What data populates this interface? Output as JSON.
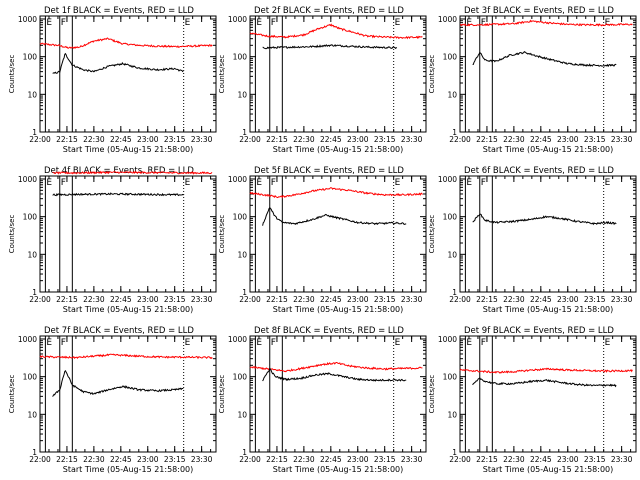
{
  "colors": {
    "events": "#000000",
    "lld": "#ff0000",
    "axes": "#000000",
    "background": "#ffffff"
  },
  "chart_data": [
    {
      "type": "line",
      "title": "Det 1f BLACK = Events, RED = LLD",
      "xlabel": "Start Time (05-Aug-15 21:58:00)",
      "ylabel": "Counts/sec",
      "xlim": [
        "22:00",
        "23:38"
      ],
      "ylim": [
        1,
        1200
      ],
      "y_scale": "log",
      "grid": false,
      "x_ticks": [
        "22:00",
        "22:15",
        "22:30",
        "22:45",
        "23:00",
        "23:15",
        "23:30"
      ],
      "y_ticks": [
        "1",
        "10",
        "100",
        "1000"
      ],
      "markers": [
        {
          "label": "E",
          "time": "22:03",
          "style": "solid"
        },
        {
          "label": "F",
          "time": "22:11",
          "style": "solid"
        },
        {
          "label": "",
          "time": "22:18",
          "style": "solid"
        },
        {
          "label": "E",
          "time": "23:20",
          "style": "dotted"
        }
      ],
      "series": [
        {
          "color": "#ff0000",
          "x": [
            "22:00",
            "22:10",
            "22:16",
            "22:22",
            "22:30",
            "22:38",
            "22:46",
            "22:55",
            "23:05",
            "23:15",
            "23:25",
            "23:36"
          ],
          "y": [
            220,
            200,
            170,
            180,
            260,
            300,
            220,
            200,
            190,
            185,
            190,
            200
          ]
        },
        {
          "color": "#000000",
          "x": [
            "22:07",
            "22:11",
            "22:14",
            "22:18",
            "22:24",
            "22:30",
            "22:38",
            "22:46",
            "22:55",
            "23:05",
            "23:15",
            "23:20"
          ],
          "y": [
            35,
            40,
            120,
            60,
            45,
            40,
            55,
            65,
            50,
            45,
            48,
            40
          ]
        }
      ]
    },
    {
      "type": "line",
      "title": "Det 2f BLACK = Events, RED = LLD",
      "xlabel": "Start Time (05-Aug-15 21:58:00)",
      "ylabel": "Counts/sec",
      "xlim": [
        "22:00",
        "23:38"
      ],
      "ylim": [
        1,
        1200
      ],
      "y_scale": "log",
      "grid": false,
      "x_ticks": [
        "22:00",
        "22:15",
        "22:30",
        "22:45",
        "23:00",
        "23:15",
        "23:30"
      ],
      "y_ticks": [
        "1",
        "10",
        "100",
        "1000"
      ],
      "markers": [
        {
          "label": "E",
          "time": "22:03",
          "style": "solid"
        },
        {
          "label": "F",
          "time": "22:11",
          "style": "solid"
        },
        {
          "label": "",
          "time": "22:18",
          "style": "solid"
        },
        {
          "label": "E",
          "time": "23:20",
          "style": "dotted"
        }
      ],
      "series": [
        {
          "color": "#ff0000",
          "x": [
            "22:00",
            "22:10",
            "22:20",
            "22:30",
            "22:38",
            "22:45",
            "22:50",
            "22:57",
            "23:05",
            "23:15",
            "23:25",
            "23:36"
          ],
          "y": [
            420,
            350,
            330,
            380,
            550,
            700,
            550,
            450,
            350,
            330,
            320,
            330
          ]
        },
        {
          "color": "#000000",
          "x": [
            "22:07",
            "22:15",
            "22:25",
            "22:35",
            "22:45",
            "22:55",
            "23:05",
            "23:15",
            "23:22"
          ],
          "y": [
            170,
            175,
            180,
            185,
            200,
            190,
            180,
            175,
            170
          ]
        }
      ]
    },
    {
      "type": "line",
      "title": "Det 3f BLACK = Events, RED = LLD",
      "xlabel": "Start Time (05-Aug-15 21:58:00)",
      "ylabel": "Counts/sec",
      "xlim": [
        "22:00",
        "23:38"
      ],
      "ylim": [
        1,
        1200
      ],
      "y_scale": "log",
      "grid": false,
      "x_ticks": [
        "22:00",
        "22:15",
        "22:30",
        "22:45",
        "23:00",
        "23:15",
        "23:30"
      ],
      "y_ticks": [
        "1",
        "10",
        "100",
        "1000"
      ],
      "markers": [
        {
          "label": "E",
          "time": "22:03",
          "style": "solid"
        },
        {
          "label": "F",
          "time": "22:11",
          "style": "solid"
        },
        {
          "label": "",
          "time": "22:18",
          "style": "solid"
        },
        {
          "label": "E",
          "time": "23:20",
          "style": "dotted"
        }
      ],
      "series": [
        {
          "color": "#ff0000",
          "x": [
            "22:00",
            "22:10",
            "22:20",
            "22:30",
            "22:40",
            "22:50",
            "23:00",
            "23:10",
            "23:20",
            "23:36"
          ],
          "y": [
            700,
            700,
            720,
            750,
            880,
            780,
            720,
            700,
            700,
            720
          ]
        },
        {
          "color": "#000000",
          "x": [
            "22:07",
            "22:11",
            "22:14",
            "22:20",
            "22:28",
            "22:36",
            "22:44",
            "22:52",
            "23:00",
            "23:10",
            "23:20",
            "23:27"
          ],
          "y": [
            60,
            130,
            80,
            75,
            110,
            130,
            100,
            80,
            65,
            60,
            58,
            60
          ]
        }
      ]
    },
    {
      "type": "line",
      "title": "Det 4f BLACK = Events, RED = LLD",
      "xlabel": "Start Time (05-Aug-15 21:58:00)",
      "ylabel": "Counts/sec",
      "xlim": [
        "22:00",
        "23:38"
      ],
      "ylim": [
        1,
        1200
      ],
      "y_scale": "log",
      "grid": false,
      "x_ticks": [
        "22:00",
        "22:15",
        "22:30",
        "22:45",
        "23:00",
        "23:15",
        "23:30"
      ],
      "y_ticks": [
        "1",
        "10",
        "100",
        "1000"
      ],
      "markers": [
        {
          "label": "E",
          "time": "22:03",
          "style": "solid"
        },
        {
          "label": "F",
          "time": "22:11",
          "style": "solid"
        },
        {
          "label": "",
          "time": "22:18",
          "style": "solid"
        },
        {
          "label": "E",
          "time": "23:20",
          "style": "dotted"
        }
      ],
      "series": [
        {
          "color": "#ff0000",
          "x": [
            "22:07",
            "22:20",
            "22:40",
            "23:00",
            "23:20",
            "23:36"
          ],
          "y": [
            1450,
            1450,
            1500,
            1480,
            1450,
            1450
          ]
        },
        {
          "color": "#000000",
          "x": [
            "22:07",
            "22:20",
            "22:40",
            "23:00",
            "23:15",
            "23:20"
          ],
          "y": [
            380,
            390,
            400,
            390,
            380,
            380
          ]
        }
      ]
    },
    {
      "type": "line",
      "title": "Det 5f BLACK = Events, RED = LLD",
      "xlabel": "Start Time (05-Aug-15 21:58:00)",
      "ylabel": "Counts/sec",
      "xlim": [
        "22:00",
        "23:38"
      ],
      "ylim": [
        1,
        1200
      ],
      "y_scale": "log",
      "grid": false,
      "x_ticks": [
        "22:00",
        "22:15",
        "22:30",
        "22:45",
        "23:00",
        "23:15",
        "23:30"
      ],
      "y_ticks": [
        "1",
        "10",
        "100",
        "1000"
      ],
      "markers": [
        {
          "label": "E",
          "time": "22:03",
          "style": "solid"
        },
        {
          "label": "F",
          "time": "22:11",
          "style": "solid"
        },
        {
          "label": "",
          "time": "22:18",
          "style": "solid"
        },
        {
          "label": "E",
          "time": "23:20",
          "style": "dotted"
        }
      ],
      "series": [
        {
          "color": "#ff0000",
          "x": [
            "22:00",
            "22:08",
            "22:16",
            "22:25",
            "22:35",
            "22:45",
            "22:55",
            "23:05",
            "23:15",
            "23:25",
            "23:36"
          ],
          "y": [
            420,
            380,
            330,
            380,
            480,
            560,
            500,
            420,
            380,
            380,
            400
          ]
        },
        {
          "color": "#000000",
          "x": [
            "22:07",
            "22:11",
            "22:14",
            "22:18",
            "22:25",
            "22:35",
            "22:42",
            "22:50",
            "23:00",
            "23:10",
            "23:20",
            "23:27"
          ],
          "y": [
            60,
            180,
            100,
            70,
            65,
            85,
            110,
            90,
            70,
            65,
            68,
            65
          ]
        }
      ]
    },
    {
      "type": "line",
      "title": "Det 6f BLACK = Events, RED = LLD",
      "xlabel": "Start Time (05-Aug-15 21:58:00)",
      "ylabel": "Counts/sec",
      "xlim": [
        "22:00",
        "23:38"
      ],
      "ylim": [
        1,
        1200
      ],
      "y_scale": "log",
      "grid": false,
      "x_ticks": [
        "22:00",
        "22:15",
        "22:30",
        "22:45",
        "23:00",
        "23:15",
        "23:30"
      ],
      "y_ticks": [
        "1",
        "10",
        "100",
        "1000"
      ],
      "markers": [
        {
          "label": "E",
          "time": "22:03",
          "style": "solid"
        },
        {
          "label": "F",
          "time": "22:11",
          "style": "solid"
        },
        {
          "label": "",
          "time": "22:18",
          "style": "solid"
        },
        {
          "label": "E",
          "time": "23:20",
          "style": "dotted"
        }
      ],
      "series": [
        {
          "color": "#000000",
          "x": [
            "22:07",
            "22:11",
            "22:14",
            "22:20",
            "22:30",
            "22:40",
            "22:48",
            "22:56",
            "23:05",
            "23:15",
            "23:22",
            "23:27"
          ],
          "y": [
            70,
            120,
            80,
            70,
            75,
            85,
            100,
            90,
            75,
            65,
            70,
            65
          ]
        }
      ]
    },
    {
      "type": "line",
      "title": "Det 7f BLACK = Events, RED = LLD",
      "xlabel": "Start Time (05-Aug-15 21:58:00)",
      "ylabel": "Counts/sec",
      "xlim": [
        "22:00",
        "23:38"
      ],
      "ylim": [
        1,
        1200
      ],
      "y_scale": "log",
      "grid": false,
      "x_ticks": [
        "22:00",
        "22:15",
        "22:30",
        "22:45",
        "23:00",
        "23:15",
        "23:30"
      ],
      "y_ticks": [
        "1",
        "10",
        "100",
        "1000"
      ],
      "markers": [
        {
          "label": "E",
          "time": "22:03",
          "style": "solid"
        },
        {
          "label": "F",
          "time": "22:11",
          "style": "solid"
        },
        {
          "label": "",
          "time": "22:18",
          "style": "solid"
        },
        {
          "label": "E",
          "time": "23:20",
          "style": "dotted"
        }
      ],
      "series": [
        {
          "color": "#ff0000",
          "x": [
            "22:00",
            "22:10",
            "22:20",
            "22:30",
            "22:40",
            "22:50",
            "23:00",
            "23:10",
            "23:20",
            "23:36"
          ],
          "y": [
            340,
            330,
            320,
            350,
            380,
            360,
            340,
            330,
            330,
            320
          ]
        },
        {
          "color": "#000000",
          "x": [
            "22:07",
            "22:11",
            "22:14",
            "22:18",
            "22:24",
            "22:30",
            "22:38",
            "22:46",
            "22:55",
            "23:05",
            "23:15",
            "23:20"
          ],
          "y": [
            30,
            45,
            150,
            60,
            40,
            35,
            45,
            55,
            45,
            42,
            45,
            48
          ]
        }
      ]
    },
    {
      "type": "line",
      "title": "Det 8f BLACK = Events, RED = LLD",
      "xlabel": "Start Time (05-Aug-15 21:58:00)",
      "ylabel": "Counts/sec",
      "xlim": [
        "22:00",
        "23:38"
      ],
      "ylim": [
        1,
        1200
      ],
      "y_scale": "log",
      "grid": false,
      "x_ticks": [
        "22:00",
        "22:15",
        "22:30",
        "22:45",
        "23:00",
        "23:15",
        "23:30"
      ],
      "y_ticks": [
        "1",
        "10",
        "100",
        "1000"
      ],
      "markers": [
        {
          "label": "E",
          "time": "22:03",
          "style": "solid"
        },
        {
          "label": "F",
          "time": "22:11",
          "style": "solid"
        },
        {
          "label": "",
          "time": "22:18",
          "style": "solid"
        },
        {
          "label": "E",
          "time": "23:20",
          "style": "dotted"
        }
      ],
      "series": [
        {
          "color": "#ff0000",
          "x": [
            "22:00",
            "22:10",
            "22:20",
            "22:30",
            "22:40",
            "22:48",
            "22:56",
            "23:05",
            "23:15",
            "23:25",
            "23:36"
          ],
          "y": [
            180,
            160,
            140,
            170,
            210,
            230,
            190,
            170,
            160,
            165,
            170
          ]
        },
        {
          "color": "#000000",
          "x": [
            "22:07",
            "22:11",
            "22:14",
            "22:20",
            "22:28",
            "22:36",
            "22:44",
            "22:52",
            "23:00",
            "23:10",
            "23:20",
            "23:27"
          ],
          "y": [
            80,
            160,
            100,
            85,
            90,
            110,
            120,
            100,
            85,
            80,
            82,
            80
          ]
        }
      ]
    },
    {
      "type": "line",
      "title": "Det 9f BLACK = Events, RED = LLD",
      "xlabel": "Start Time (05-Aug-15 21:58:00)",
      "ylabel": "Counts/sec",
      "xlim": [
        "22:00",
        "23:38"
      ],
      "ylim": [
        1,
        1200
      ],
      "y_scale": "log",
      "grid": false,
      "x_ticks": [
        "22:00",
        "22:15",
        "22:30",
        "22:45",
        "23:00",
        "23:15",
        "23:30"
      ],
      "y_ticks": [
        "1",
        "10",
        "100",
        "1000"
      ],
      "markers": [
        {
          "label": "E",
          "time": "22:03",
          "style": "solid"
        },
        {
          "label": "F",
          "time": "22:11",
          "style": "solid"
        },
        {
          "label": "",
          "time": "22:18",
          "style": "solid"
        },
        {
          "label": "E",
          "time": "23:20",
          "style": "dotted"
        }
      ],
      "series": [
        {
          "color": "#ff0000",
          "x": [
            "22:00",
            "22:10",
            "22:20",
            "22:30",
            "22:40",
            "22:50",
            "23:00",
            "23:10",
            "23:20",
            "23:36"
          ],
          "y": [
            150,
            140,
            130,
            135,
            150,
            160,
            150,
            145,
            140,
            145
          ]
        },
        {
          "color": "#000000",
          "x": [
            "22:07",
            "22:11",
            "22:14",
            "22:20",
            "22:30",
            "22:40",
            "22:48",
            "22:56",
            "23:05",
            "23:15",
            "23:22",
            "23:27"
          ],
          "y": [
            60,
            90,
            75,
            65,
            65,
            75,
            80,
            70,
            62,
            58,
            60,
            58
          ]
        }
      ]
    }
  ]
}
